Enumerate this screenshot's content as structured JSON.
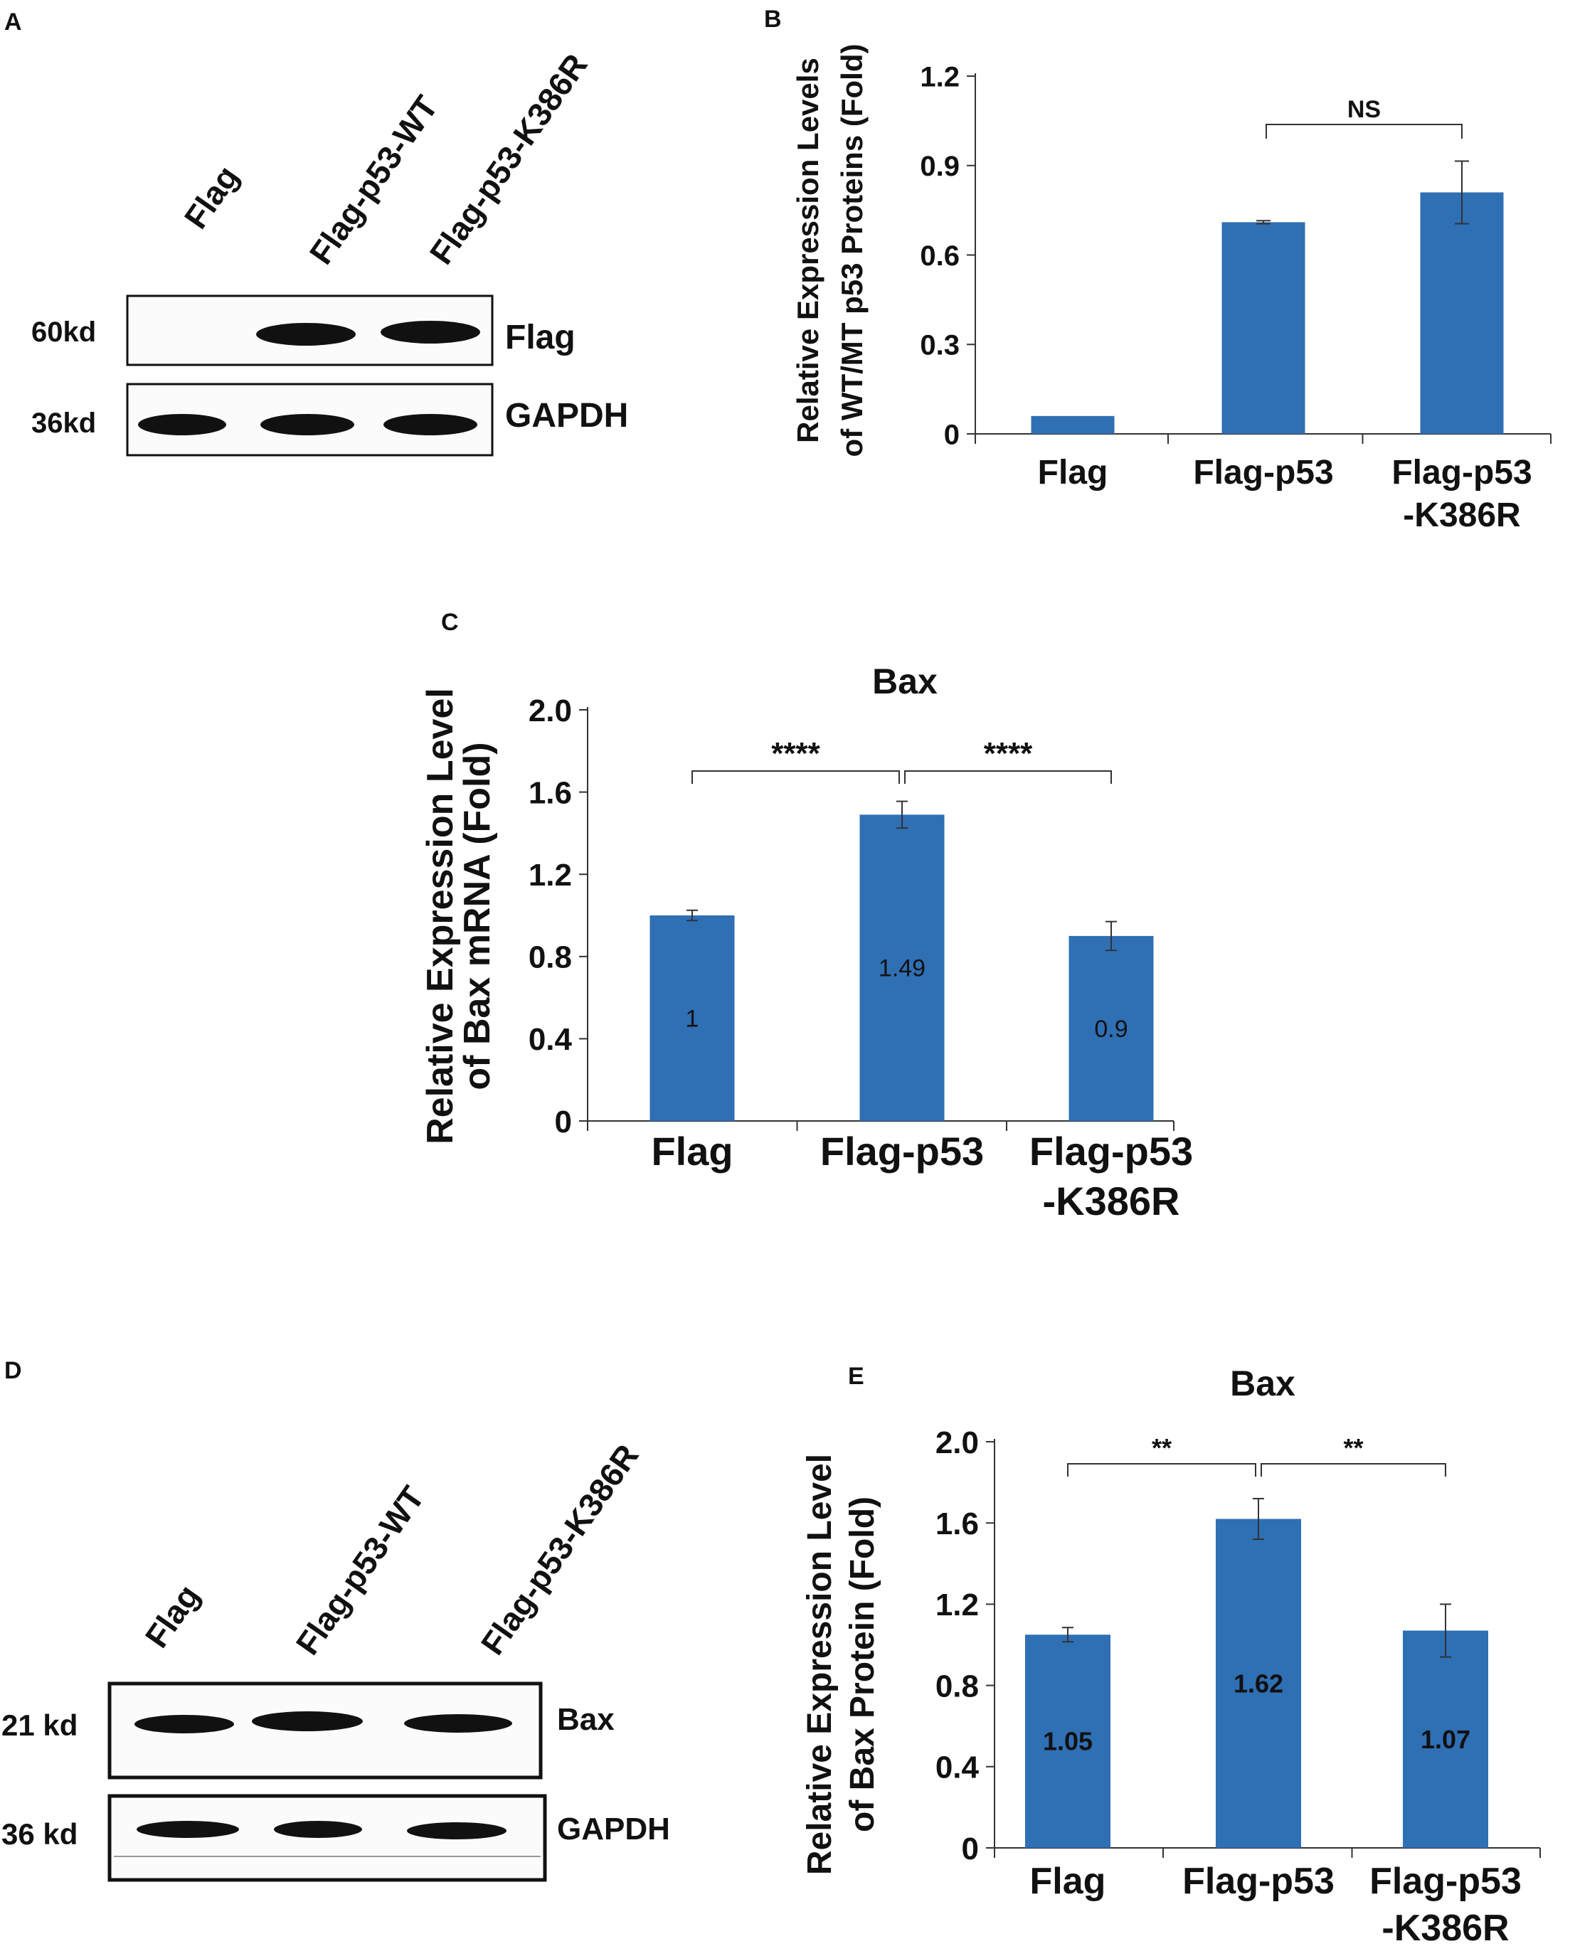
{
  "panels": {
    "A": {
      "letter": "A",
      "lanes": [
        "Flag",
        "Flag-p53-WT",
        "Flag-p53-K386R"
      ],
      "blots": [
        {
          "size": "60kd",
          "label": "Flag",
          "band_intensity": [
            0,
            1,
            1
          ]
        },
        {
          "size": "36kd",
          "label": "GAPDH",
          "band_intensity": [
            1,
            1,
            1
          ]
        }
      ]
    },
    "D": {
      "letter": "D",
      "lanes": [
        "Flag",
        "Flag-p53-WT",
        "Flag-p53-K386R"
      ],
      "blots": [
        {
          "size": "21 kd",
          "label": "Bax",
          "band_intensity": [
            0.9,
            1,
            0.9
          ]
        },
        {
          "size": "36 kd",
          "label": "GAPDH",
          "band_intensity": [
            1,
            0.9,
            0.9
          ]
        }
      ]
    }
  },
  "chart_data": [
    {
      "panel": "B",
      "type": "bar",
      "title": "",
      "ylabel": [
        "Relative Expression Levels",
        "of WT/MT p53 Proteins (Fold)"
      ],
      "categories": [
        [
          "Flag"
        ],
        [
          "Flag-p53"
        ],
        [
          "Flag-p53",
          "-K386R"
        ]
      ],
      "values": [
        0.06,
        0.71,
        0.81
      ],
      "errors": [
        0.0,
        0.005,
        0.105
      ],
      "ylim": [
        0,
        1.2
      ],
      "yticks": [
        "0",
        "0.3",
        "0.6",
        "0.9",
        "1.2"
      ],
      "grid": false,
      "bar_color": "#2f6fb4",
      "brackets": [
        {
          "from": 1,
          "to": 2,
          "label": "NS"
        }
      ]
    },
    {
      "panel": "C",
      "type": "bar",
      "title": "Bax",
      "ylabel": [
        "Relative Expression Level",
        "of Bax mRNA (Fold)"
      ],
      "categories": [
        [
          "Flag"
        ],
        [
          "Flag-p53"
        ],
        [
          "Flag-p53",
          "-K386R"
        ]
      ],
      "values": [
        1,
        1.49,
        0.9
      ],
      "value_labels": [
        "1",
        "1.49",
        "0.9"
      ],
      "errors": [
        0.025,
        0.065,
        0.07
      ],
      "ylim": [
        0,
        2.0
      ],
      "yticks": [
        "0",
        "0.4",
        "0.8",
        "1.2",
        "1.6",
        "2.0"
      ],
      "grid": false,
      "bar_color": "#2f6fb4",
      "brackets": [
        {
          "from": 0,
          "to": 1,
          "label": "****"
        },
        {
          "from": 1,
          "to": 2,
          "label": "****"
        }
      ]
    },
    {
      "panel": "E",
      "type": "bar",
      "title": "Bax",
      "ylabel": [
        "Relative Expression Level",
        "of Bax Protein (Fold)"
      ],
      "categories": [
        [
          "Flag"
        ],
        [
          "Flag-p53"
        ],
        [
          "Flag-p53",
          "-K386R"
        ]
      ],
      "values": [
        1.05,
        1.62,
        1.07
      ],
      "value_labels": [
        "1.05",
        "1.62",
        "1.07"
      ],
      "errors": [
        0.035,
        0.1,
        0.13
      ],
      "ylim": [
        0,
        2.0
      ],
      "yticks": [
        "0",
        "0.4",
        "0.8",
        "1.2",
        "1.6",
        "2.0"
      ],
      "grid": false,
      "bar_color": "#2f6fb4",
      "brackets": [
        {
          "from": 0,
          "to": 1,
          "label": "**"
        },
        {
          "from": 1,
          "to": 2,
          "label": "**"
        }
      ]
    }
  ]
}
